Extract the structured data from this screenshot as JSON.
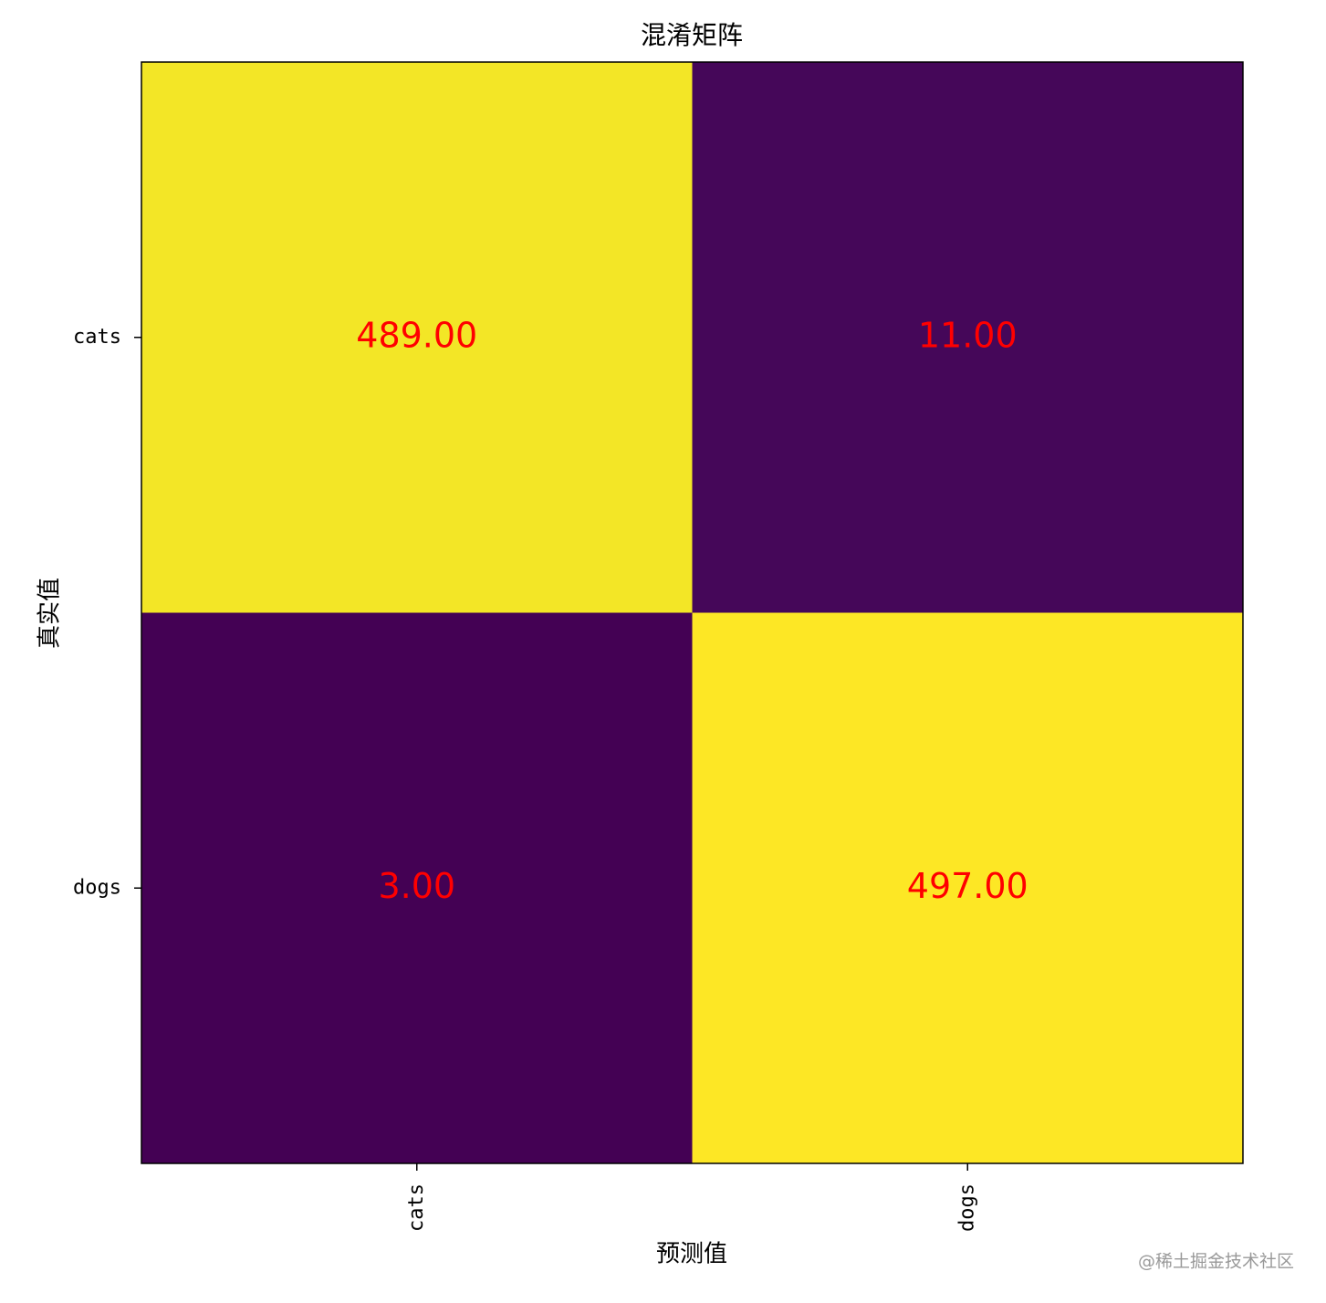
{
  "chart_data": {
    "type": "heatmap",
    "title": "混淆矩阵",
    "xlabel": "预测值",
    "ylabel": "真实值",
    "x_categories": [
      "cats",
      "dogs"
    ],
    "y_categories": [
      "cats",
      "dogs"
    ],
    "values": [
      [
        489,
        11
      ],
      [
        3,
        497
      ]
    ],
    "value_labels": [
      [
        "489.00",
        "11.00"
      ],
      [
        "3.00",
        "497.00"
      ]
    ],
    "colormap": "viridis",
    "value_label_color": "#ff0000",
    "watermark": "@稀土掘金技术社区"
  }
}
